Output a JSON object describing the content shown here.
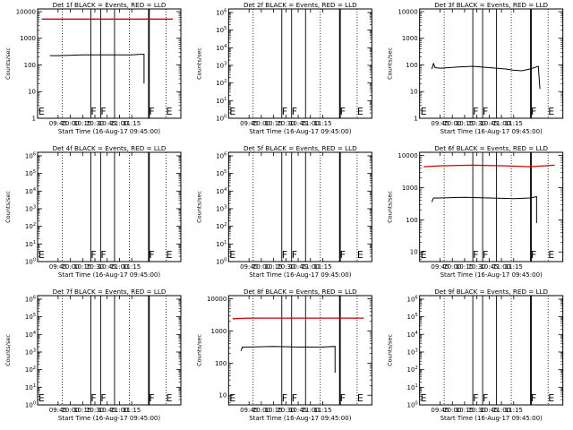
{
  "chart_data": [
    {
      "type": "line",
      "title": "Det 1f BLACK = Events, RED = LLD",
      "xlabel": "Start Time (16-Aug-17 09:45:00)",
      "ylabel": "Counts/sec",
      "x_ticks": [
        "09:45",
        "10:00",
        "10:15",
        "10:30",
        "10:45",
        "11:00",
        "11:15"
      ],
      "y_ticks": [
        "1",
        "10",
        "100",
        "1000",
        "10000"
      ],
      "ylim_log10": [
        0,
        4.1
      ],
      "markers": [
        "E",
        "F",
        "F",
        "F",
        "E"
      ],
      "series": [
        {
          "color": "#000000",
          "values": [
            [
              -10,
              2.35
            ],
            [
              0,
              2.35
            ],
            [
              30,
              2.38
            ],
            [
              60,
              2.38
            ],
            [
              90,
              2.38
            ],
            [
              100,
              2.4
            ],
            [
              105,
              2.4
            ],
            [
              105,
              1.3
            ]
          ]
        },
        {
          "color": "#cc0000",
          "values": [
            [
              -20,
              3.72
            ],
            [
              140,
              3.72
            ]
          ]
        }
      ]
    },
    {
      "type": "line",
      "title": "Det 2f BLACK = Events, RED = LLD",
      "xlabel": "Start Time (16-Aug-17 09:45:00)",
      "ylabel": "Counts/sec",
      "x_ticks": [
        "09:45",
        "10:00",
        "10:15",
        "10:30",
        "10:45",
        "11:00",
        "11:15"
      ],
      "y_ticks": [
        "10^0",
        "10^1",
        "10^2",
        "10^3",
        "10^4",
        "10^5",
        "10^6"
      ],
      "ylim_log10": [
        0,
        6.2
      ],
      "markers": [
        "E",
        "F",
        "F",
        "F",
        "E"
      ],
      "series": []
    },
    {
      "type": "line",
      "title": "Det 3f BLACK = Events, RED = LLD",
      "xlabel": "Start Time (16-Aug-17 09:45:00)",
      "ylabel": "Counts/sec",
      "x_ticks": [
        "09:45",
        "10:00",
        "10:15",
        "10:30",
        "10:45",
        "11:00",
        "11:15"
      ],
      "y_ticks": [
        "1",
        "10",
        "100",
        "1000",
        "10000"
      ],
      "ylim_log10": [
        0,
        4.1
      ],
      "markers": [
        "E",
        "F",
        "F",
        "F",
        "E"
      ],
      "series": [
        {
          "color": "#000000",
          "values": [
            [
              -10,
              1.85
            ],
            [
              -8,
              2.05
            ],
            [
              -6,
              1.9
            ],
            [
              0,
              1.88
            ],
            [
              20,
              1.92
            ],
            [
              40,
              1.95
            ],
            [
              60,
              1.9
            ],
            [
              80,
              1.85
            ],
            [
              90,
              1.8
            ],
            [
              100,
              1.78
            ],
            [
              110,
              1.85
            ],
            [
              120,
              1.95
            ],
            [
              122,
              1.1
            ]
          ]
        }
      ]
    },
    {
      "type": "line",
      "title": "Det 4f BLACK = Events, RED = LLD",
      "xlabel": "Start Time (16-Aug-17 09:45:00)",
      "ylabel": "Counts/sec",
      "x_ticks": [
        "09:45",
        "10:00",
        "10:15",
        "10:30",
        "10:45",
        "11:00",
        "11:15"
      ],
      "y_ticks": [
        "10^0",
        "10^1",
        "10^2",
        "10^3",
        "10^4",
        "10^5",
        "10^6"
      ],
      "ylim_log10": [
        0,
        6.2
      ],
      "markers": [
        "E",
        "F",
        "F",
        "F",
        "E"
      ],
      "series": []
    },
    {
      "type": "line",
      "title": "Det 5f BLACK = Events, RED = LLD",
      "xlabel": "Start Time (16-Aug-17 09:45:00)",
      "ylabel": "Counts/sec",
      "x_ticks": [
        "09:45",
        "10:00",
        "10:15",
        "10:30",
        "10:45",
        "11:00",
        "11:15"
      ],
      "y_ticks": [
        "10^0",
        "10^1",
        "10^2",
        "10^3",
        "10^4",
        "10^5",
        "10^6"
      ],
      "ylim_log10": [
        0,
        6.2
      ],
      "markers": [
        "E",
        "F",
        "F",
        "F",
        "E"
      ],
      "series": []
    },
    {
      "type": "line",
      "title": "Det 6f BLACK = Events, RED = LLD",
      "xlabel": "Start Time (16-Aug-17 09:45:00)",
      "ylabel": "Counts/sec",
      "x_ticks": [
        "09:45",
        "10:00",
        "10:15",
        "10:30",
        "10:45",
        "11:00",
        "11:15"
      ],
      "y_ticks": [
        "10",
        "100",
        "1000",
        "10000"
      ],
      "ylim_log10": [
        0.7,
        4.1
      ],
      "markers": [
        "E",
        "F",
        "F",
        "F",
        "E"
      ],
      "series": [
        {
          "color": "#000000",
          "values": [
            [
              -10,
              2.55
            ],
            [
              -8,
              2.68
            ],
            [
              0,
              2.68
            ],
            [
              30,
              2.7
            ],
            [
              60,
              2.68
            ],
            [
              90,
              2.66
            ],
            [
              110,
              2.68
            ],
            [
              118,
              2.72
            ],
            [
              118,
              1.9
            ]
          ]
        },
        {
          "color": "#cc0000",
          "values": [
            [
              -20,
              3.65
            ],
            [
              0,
              3.68
            ],
            [
              40,
              3.7
            ],
            [
              80,
              3.68
            ],
            [
              110,
              3.65
            ],
            [
              140,
              3.7
            ]
          ]
        }
      ]
    },
    {
      "type": "line",
      "title": "Det 7f BLACK = Events, RED = LLD",
      "xlabel": "Start Time (16-Aug-17 09:45:00)",
      "ylabel": "Counts/sec",
      "x_ticks": [
        "09:45",
        "10:00",
        "10:15",
        "10:30",
        "10:45",
        "11:00",
        "11:15"
      ],
      "y_ticks": [
        "10^0",
        "10^1",
        "10^2",
        "10^3",
        "10^4",
        "10^5",
        "10^6"
      ],
      "ylim_log10": [
        0,
        6.2
      ],
      "markers": [
        "E",
        "F",
        "F",
        "F",
        "E"
      ],
      "series": []
    },
    {
      "type": "line",
      "title": "Det 8f BLACK = Events, RED = LLD",
      "xlabel": "Start Time (16-Aug-17 09:45:00)",
      "ylabel": "Counts/sec",
      "x_ticks": [
        "09:45",
        "10:00",
        "10:15",
        "10:30",
        "10:45",
        "11:00",
        "11:15"
      ],
      "y_ticks": [
        "10",
        "100",
        "1000",
        "10000"
      ],
      "ylim_log10": [
        0.7,
        4.1
      ],
      "markers": [
        "E",
        "F",
        "F",
        "F",
        "E"
      ],
      "series": [
        {
          "color": "#000000",
          "values": [
            [
              -10,
              2.38
            ],
            [
              -8,
              2.5
            ],
            [
              0,
              2.5
            ],
            [
              30,
              2.52
            ],
            [
              60,
              2.5
            ],
            [
              90,
              2.5
            ],
            [
              105,
              2.52
            ],
            [
              105,
              1.7
            ]
          ]
        },
        {
          "color": "#cc0000",
          "values": [
            [
              -20,
              3.38
            ],
            [
              0,
              3.4
            ],
            [
              40,
              3.4
            ],
            [
              80,
              3.4
            ],
            [
              110,
              3.4
            ],
            [
              140,
              3.4
            ]
          ]
        }
      ]
    },
    {
      "type": "line",
      "title": "Det 9f BLACK = Events, RED = LLD",
      "xlabel": "Start Time (16-Aug-17 09:45:00)",
      "ylabel": "Counts/sec",
      "x_ticks": [
        "09:45",
        "10:00",
        "10:15",
        "10:30",
        "10:45",
        "11:00",
        "11:15"
      ],
      "y_ticks": [
        "10^0",
        "10^1",
        "10^2",
        "10^3",
        "10^4",
        "10^5",
        "10^6"
      ],
      "ylim_log10": [
        0,
        6.2
      ],
      "markers": [
        "E",
        "F",
        "F",
        "F",
        "E"
      ],
      "series": []
    }
  ]
}
